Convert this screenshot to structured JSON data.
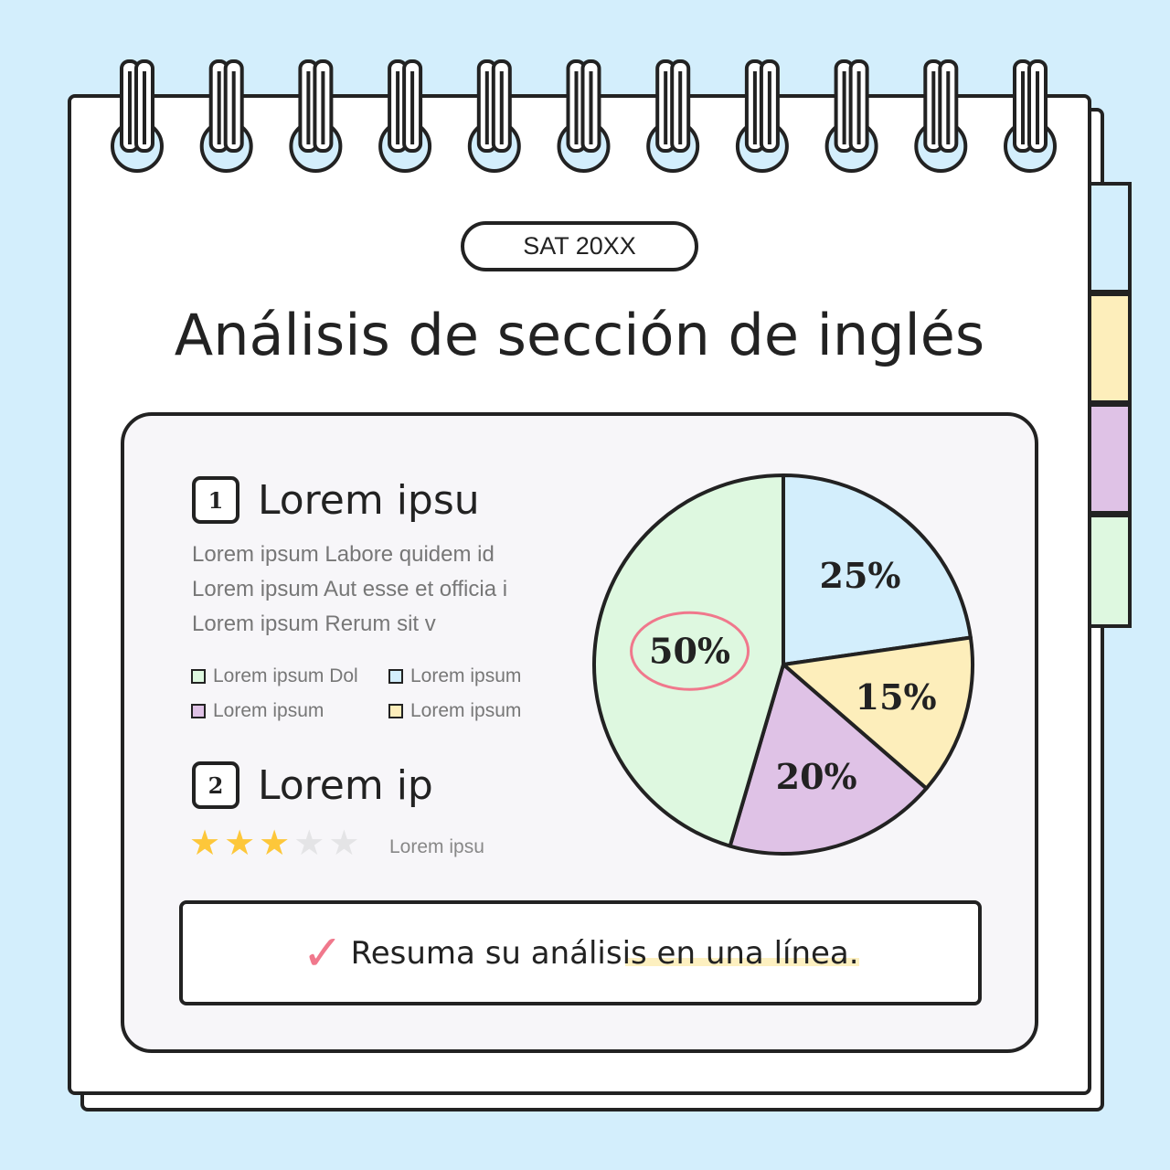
{
  "header": {
    "badge": "SAT 20XX",
    "title": "Análisis de sección de inglés"
  },
  "tabs": {
    "colors": [
      "#d3eefc",
      "#fdeebb",
      "#dfc2e6",
      "#def8e0"
    ]
  },
  "section1": {
    "number": "1",
    "heading": "Lorem ipsu",
    "lines": [
      "Lorem ipsum Labore quidem id",
      "Lorem ipsum Aut esse et officia i",
      "Lorem ipsum Rerum sit v"
    ],
    "legend": [
      {
        "label": "Lorem ipsum Dol",
        "color": "#def8e0"
      },
      {
        "label": "Lorem ipsum",
        "color": "#d3eefc"
      },
      {
        "label": "Lorem ipsum",
        "color": "#dfc2e6"
      },
      {
        "label": "Lorem ipsum",
        "color": "#fdeebb"
      }
    ]
  },
  "section2": {
    "number": "2",
    "heading": "Lorem ip",
    "rating": 3,
    "rating_max": 5,
    "rating_label": "Lorem ipsu"
  },
  "summary": {
    "text": "Resuma su análisis en una línea.",
    "check_icon": "check-icon",
    "check_color": "#f0788c"
  },
  "chart_data": {
    "type": "pie",
    "slices": [
      {
        "label": "25%",
        "value": 25,
        "color": "#d3eefc"
      },
      {
        "label": "15%",
        "value": 15,
        "color": "#fdeebb"
      },
      {
        "label": "20%",
        "value": 20,
        "color": "#dfc2e6"
      },
      {
        "label": "50%",
        "value": 50,
        "color": "#def8e0",
        "highlighted": true
      }
    ],
    "highlight_color": "#f0788c"
  }
}
